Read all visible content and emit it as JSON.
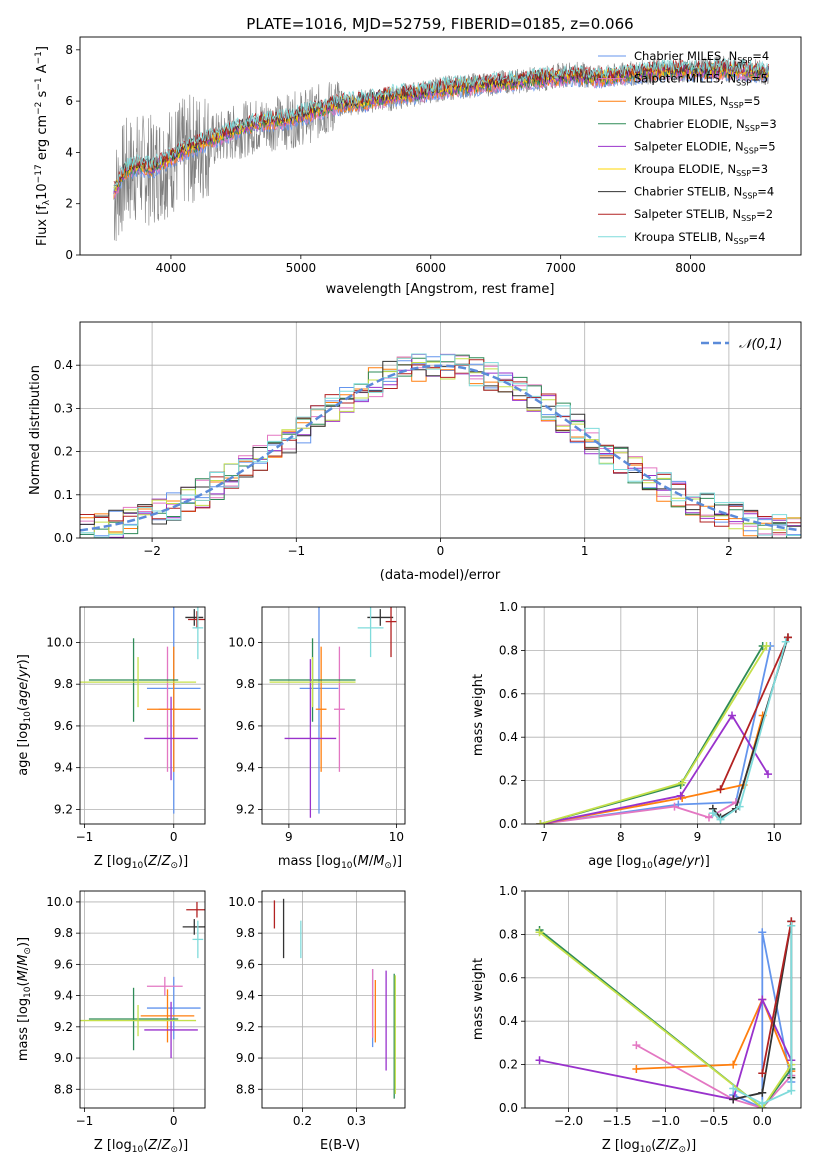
{
  "chart_data": [
    {
      "type": "line",
      "title": "PLATE=1016, MJD=52759, FIBERID=0185, z=0.066",
      "xlabel": "wavelength [Angstrom, rest frame]",
      "ylabel": "Flux [f_λ 10^-17 erg cm^-2 s^-1 A^-1]",
      "xlim": [
        3300,
        8850
      ],
      "ylim": [
        0,
        8.5
      ],
      "xticks": [
        "4000",
        "5000",
        "6000",
        "7000",
        "8000"
      ],
      "yticks": [
        "0",
        "2",
        "4",
        "6",
        "8"
      ],
      "data_series": {
        "name": "data",
        "color": "#808080",
        "x": [
          3560,
          3650,
          3750,
          3850,
          4000,
          4150,
          4300,
          4500,
          4700,
          4900,
          5100,
          5300,
          5500,
          5700,
          5900,
          6100,
          6300,
          6500,
          6700,
          6900,
          7100,
          7300,
          7450,
          7600,
          7800,
          8000,
          8200,
          8400,
          8600
        ],
        "y": [
          2.2,
          3.2,
          3.4,
          3.3,
          3.7,
          4.1,
          4.4,
          4.8,
          5.1,
          5.2,
          5.5,
          5.9,
          6.0,
          6.1,
          6.3,
          6.5,
          6.6,
          6.7,
          6.8,
          6.9,
          7.1,
          6.9,
          7.0,
          7.1,
          7.2,
          7.2,
          7.3,
          7.2,
          7.1
        ]
      },
      "model_x": [
        3560,
        3650,
        3750,
        3850,
        4000,
        4150,
        4300,
        4500,
        4700,
        4900,
        5100,
        5300,
        5500,
        5700,
        5900,
        6100,
        6300,
        6500,
        6700,
        6900,
        7100,
        7300,
        7450,
        7600,
        7800,
        8000,
        8200,
        8400,
        8600
      ],
      "model_y": [
        2.5,
        3.3,
        3.5,
        3.4,
        3.8,
        4.2,
        4.5,
        4.9,
        5.2,
        5.3,
        5.6,
        5.9,
        6.0,
        6.2,
        6.3,
        6.5,
        6.6,
        6.7,
        6.8,
        6.9,
        7.0,
        6.9,
        7.0,
        7.1,
        7.2,
        7.2,
        7.2,
        7.2,
        7.1
      ],
      "legend_position": "upper right",
      "series": [
        {
          "name": "Chabrier MILES, N_SSP=4",
          "color": "#6495ed"
        },
        {
          "name": "Salpeter MILES, N_SSP=5",
          "color": "#e377c2"
        },
        {
          "name": "Kroupa MILES, N_SSP=5",
          "color": "#ff7f0e"
        },
        {
          "name": "Chabrier ELODIE, N_SSP=3",
          "color": "#2e8b57"
        },
        {
          "name": "Salpeter ELODIE, N_SSP=5",
          "color": "#9932cc"
        },
        {
          "name": "Kroupa ELODIE, N_SSP=3",
          "color": "#ffd700"
        },
        {
          "name": "Chabrier STELIB, N_SSP=4",
          "color": "#333333"
        },
        {
          "name": "Salpeter STELIB, N_SSP=2",
          "color": "#b22222"
        },
        {
          "name": "Kroupa STELIB, N_SSP=4",
          "color": "#7fdbdb"
        }
      ]
    },
    {
      "type": "line",
      "xlabel": "(data-model)/error",
      "ylabel": "Normed distribution",
      "xlim": [
        -2.5,
        2.5
      ],
      "ylim": [
        0,
        0.5
      ],
      "xticks": [
        "−2",
        "−1",
        "0",
        "1",
        "2"
      ],
      "yticks": [
        "0.0",
        "0.1",
        "0.2",
        "0.3",
        "0.4"
      ],
      "legend": "𝒩(0,1)",
      "legend_position": "upper right",
      "gaussian": {
        "mu": 0,
        "sigma": 1,
        "style": "dashed",
        "color": "#5b8bd9"
      },
      "histogram_bins": {
        "start": -2.5,
        "width": 0.1,
        "count": 50
      },
      "series_colors": [
        "#6495ed",
        "#e377c2",
        "#ff7f0e",
        "#2e8b57",
        "#9932cc",
        "#c5e04a",
        "#333333",
        "#b22222",
        "#7fdbdb"
      ]
    },
    {
      "type": "scatter",
      "xlabel": "Z [log10(Z/Z⊙)]",
      "ylabel": "age [log10(age/yr)]",
      "xlim": [
        -1.05,
        0.35
      ],
      "ylim": [
        9.13,
        10.17
      ],
      "xticks": [
        "−1",
        "0"
      ],
      "yticks": [
        "9.2",
        "9.4",
        "9.6",
        "9.8",
        "10.0"
      ],
      "points": [
        {
          "x": 0.0,
          "y": 9.78,
          "xerr": 0.3,
          "yerr": 0.6,
          "color": "#6495ed"
        },
        {
          "x": -0.07,
          "y": 9.68,
          "xerr": 0.1,
          "yerr": 0.3,
          "color": "#e377c2"
        },
        {
          "x": 0.0,
          "y": 9.68,
          "xerr": 0.3,
          "yerr": 0.3,
          "color": "#ff7f0e"
        },
        {
          "x": -0.45,
          "y": 9.82,
          "xerr": 0.5,
          "yerr": 0.2,
          "color": "#2e8b57"
        },
        {
          "x": -0.03,
          "y": 9.54,
          "xerr": 0.3,
          "yerr": 0.2,
          "color": "#9932cc"
        },
        {
          "x": -0.4,
          "y": 9.81,
          "xerr": 0.65,
          "yerr": 0.12,
          "color": "#c5e04a"
        },
        {
          "x": 0.23,
          "y": 10.12,
          "xerr": 0.1,
          "yerr": 0.04,
          "color": "#333333"
        },
        {
          "x": 0.26,
          "y": 10.11,
          "xerr": 0.1,
          "yerr": 0.04,
          "color": "#b22222"
        },
        {
          "x": 0.27,
          "y": 10.07,
          "xerr": 0.06,
          "yerr": 0.15,
          "color": "#7fdbdb"
        }
      ]
    },
    {
      "type": "scatter",
      "xlabel": "mass [log10(M/M⊙)]",
      "ylabel": "",
      "xlim": [
        8.75,
        10.08
      ],
      "ylim": [
        9.13,
        10.17
      ],
      "xticks": [
        "9",
        "10"
      ],
      "yticks": [
        "9.2",
        "9.4",
        "9.6",
        "9.8",
        "10.0"
      ],
      "points": [
        {
          "x": 9.28,
          "y": 9.78,
          "xerr": 0.18,
          "yerr": 0.6,
          "color": "#6495ed"
        },
        {
          "x": 9.47,
          "y": 9.68,
          "xerr": 0.05,
          "yerr": 0.3,
          "color": "#e377c2"
        },
        {
          "x": 9.3,
          "y": 9.68,
          "xerr": 0.05,
          "yerr": 0.3,
          "color": "#ff7f0e"
        },
        {
          "x": 9.22,
          "y": 9.82,
          "xerr": 0.4,
          "yerr": 0.2,
          "color": "#2e8b57"
        },
        {
          "x": 9.2,
          "y": 9.54,
          "xerr": 0.24,
          "yerr": 0.38,
          "color": "#9932cc"
        },
        {
          "x": 9.22,
          "y": 9.81,
          "xerr": 0.4,
          "yerr": 0.12,
          "color": "#c5e04a"
        },
        {
          "x": 9.85,
          "y": 10.12,
          "xerr": 0.12,
          "yerr": 0.04,
          "color": "#333333"
        },
        {
          "x": 9.95,
          "y": 10.1,
          "xerr": 0.05,
          "yerr": 0.17,
          "color": "#b22222"
        },
        {
          "x": 9.76,
          "y": 10.07,
          "xerr": 0.12,
          "yerr": 0.14,
          "color": "#7fdbdb"
        }
      ]
    },
    {
      "type": "line",
      "xlabel": "age [log10(age/yr)]",
      "ylabel": "mass weight",
      "xlim": [
        6.75,
        10.35
      ],
      "ylim": [
        0,
        1.0
      ],
      "xticks": [
        "7",
        "8",
        "9",
        "10"
      ],
      "yticks": [
        "0.0",
        "0.2",
        "0.4",
        "0.6",
        "0.8",
        "1.0"
      ],
      "series": [
        {
          "color": "#6495ed",
          "x": [
            6.95,
            8.75,
            9.5,
            9.95
          ],
          "y": [
            0.0,
            0.09,
            0.1,
            0.82
          ]
        },
        {
          "color": "#e377c2",
          "x": [
            6.95,
            8.7,
            9.15,
            9.5
          ],
          "y": [
            0.0,
            0.08,
            0.03,
            0.1
          ]
        },
        {
          "color": "#ff7f0e",
          "x": [
            6.95,
            8.8,
            9.6,
            9.85
          ],
          "y": [
            0.0,
            0.12,
            0.18,
            0.5
          ]
        },
        {
          "color": "#2e8b57",
          "x": [
            6.95,
            8.78,
            9.85
          ],
          "y": [
            0.0,
            0.18,
            0.82
          ]
        },
        {
          "color": "#9932cc",
          "x": [
            6.95,
            8.78,
            9.45,
            9.92
          ],
          "y": [
            0.0,
            0.13,
            0.5,
            0.23
          ]
        },
        {
          "color": "#c5e04a",
          "x": [
            6.95,
            8.8,
            9.9
          ],
          "y": [
            0.0,
            0.19,
            0.82
          ]
        },
        {
          "color": "#333333",
          "x": [
            9.2,
            9.3,
            9.5,
            10.18
          ],
          "y": [
            0.07,
            0.03,
            0.07,
            0.86
          ]
        },
        {
          "color": "#b22222",
          "x": [
            9.3,
            10.18
          ],
          "y": [
            0.16,
            0.86
          ]
        },
        {
          "color": "#7fdbdb",
          "x": [
            9.2,
            9.3,
            9.55,
            10.15
          ],
          "y": [
            0.05,
            0.02,
            0.08,
            0.84
          ]
        }
      ]
    },
    {
      "type": "scatter",
      "xlabel": "Z [log10(Z/Z⊙)]",
      "ylabel": "mass [log10(M/M⊙)]",
      "xlim": [
        -1.05,
        0.35
      ],
      "ylim": [
        8.68,
        10.07
      ],
      "xticks": [
        "−1",
        "0"
      ],
      "yticks": [
        "8.8",
        "9.0",
        "9.2",
        "9.4",
        "9.6",
        "9.8",
        "10.0"
      ],
      "points": [
        {
          "x": 0.0,
          "y": 9.32,
          "xerr": 0.3,
          "yerr": 0.2,
          "color": "#6495ed"
        },
        {
          "x": -0.1,
          "y": 9.46,
          "xerr": 0.2,
          "yerr": 0.06,
          "color": "#e377c2"
        },
        {
          "x": -0.07,
          "y": 9.27,
          "xerr": 0.3,
          "yerr": 0.17,
          "color": "#ff7f0e"
        },
        {
          "x": -0.45,
          "y": 9.25,
          "xerr": 0.5,
          "yerr": 0.2,
          "color": "#2e8b57"
        },
        {
          "x": -0.03,
          "y": 9.18,
          "xerr": 0.3,
          "yerr": 0.18,
          "color": "#9932cc"
        },
        {
          "x": -0.4,
          "y": 9.24,
          "xerr": 0.65,
          "yerr": 0.1,
          "color": "#c5e04a"
        },
        {
          "x": 0.23,
          "y": 9.84,
          "xerr": 0.13,
          "yerr": 0.05,
          "color": "#333333"
        },
        {
          "x": 0.26,
          "y": 9.95,
          "xerr": 0.12,
          "yerr": 0.05,
          "color": "#b22222"
        },
        {
          "x": 0.27,
          "y": 9.76,
          "xerr": 0.06,
          "yerr": 0.12,
          "color": "#7fdbdb"
        }
      ]
    },
    {
      "type": "scatter",
      "xlabel": "E(B-V)",
      "ylabel": "",
      "xlim": [
        0.125,
        0.39
      ],
      "ylim": [
        8.68,
        10.07
      ],
      "xticks": [
        "0.2",
        "0.3"
      ],
      "yticks": [
        "8.8",
        "9.0",
        "9.2",
        "9.4",
        "9.6",
        "9.8",
        "10.0"
      ],
      "points": [
        {
          "x": 0.33,
          "y": 9.32,
          "yerr": 0.25,
          "color": "#6495ed"
        },
        {
          "x": 0.33,
          "y": 9.35,
          "yerr": 0.22,
          "color": "#e377c2"
        },
        {
          "x": 0.335,
          "y": 9.3,
          "yerr": 0.2,
          "color": "#ff7f0e"
        },
        {
          "x": 0.37,
          "y": 9.14,
          "yerr": 0.4,
          "color": "#2e8b57"
        },
        {
          "x": 0.355,
          "y": 9.24,
          "yerr": 0.32,
          "color": "#9932cc"
        },
        {
          "x": 0.372,
          "y": 9.15,
          "yerr": 0.38,
          "color": "#c5e04a"
        },
        {
          "x": 0.165,
          "y": 9.83,
          "yerr": 0.19,
          "color": "#333333"
        },
        {
          "x": 0.148,
          "y": 9.92,
          "yerr": 0.09,
          "color": "#b22222"
        },
        {
          "x": 0.197,
          "y": 9.76,
          "yerr": 0.12,
          "color": "#7fdbdb"
        }
      ]
    },
    {
      "type": "line",
      "xlabel": "Z [log10(Z/Z⊙)]",
      "ylabel": "mass weight",
      "xlim": [
        -2.45,
        0.4
      ],
      "ylim": [
        0,
        1.0
      ],
      "xticks": [
        "−2.0",
        "−1.5",
        "−1.0",
        "−0.5",
        "0.0"
      ],
      "yticks": [
        "0.0",
        "0.2",
        "0.4",
        "0.6",
        "0.8",
        "1.0"
      ],
      "series": [
        {
          "color": "#6495ed",
          "x": [
            -0.3,
            0.0,
            0.0,
            0.3
          ],
          "y": [
            0.06,
            0.0,
            0.81,
            0.12
          ]
        },
        {
          "color": "#e377c2",
          "x": [
            -1.3,
            -0.3,
            0.0,
            0.3
          ],
          "y": [
            0.29,
            0.04,
            0.0,
            0.15
          ]
        },
        {
          "color": "#ff7f0e",
          "x": [
            -1.3,
            -0.3,
            0.0,
            0.3
          ],
          "y": [
            0.18,
            0.2,
            0.5,
            0.17
          ]
        },
        {
          "color": "#2e8b57",
          "x": [
            -2.3,
            0.0,
            0.3
          ],
          "y": [
            0.82,
            0.0,
            0.18
          ]
        },
        {
          "color": "#9932cc",
          "x": [
            -2.3,
            -0.3,
            0.0,
            0.3
          ],
          "y": [
            0.22,
            0.04,
            0.5,
            0.22
          ]
        },
        {
          "color": "#c5e04a",
          "x": [
            -2.3,
            0.0,
            0.3
          ],
          "y": [
            0.81,
            0.0,
            0.2
          ]
        },
        {
          "color": "#333333",
          "x": [
            -0.3,
            0.0,
            0.3,
            0.3
          ],
          "y": [
            0.04,
            0.07,
            0.86,
            0.14
          ]
        },
        {
          "color": "#b22222",
          "x": [
            0.0,
            0.3
          ],
          "y": [
            0.16,
            0.86
          ]
        },
        {
          "color": "#7fdbdb",
          "x": [
            -0.3,
            0.0,
            0.3,
            0.3
          ],
          "y": [
            0.09,
            0.02,
            0.08,
            0.84
          ]
        }
      ]
    }
  ]
}
